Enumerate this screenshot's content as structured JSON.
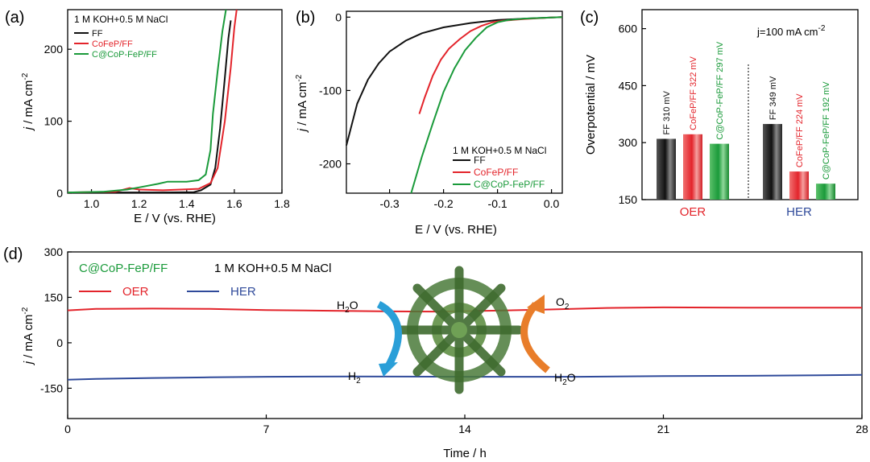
{
  "colors": {
    "black": "#111111",
    "red": "#e3242b",
    "green": "#1a9a3a",
    "blue": "#2f4a9a",
    "orange": "#e87d2a",
    "cyan": "#2a9fd8",
    "olive": "#4a7a3a"
  },
  "chart_data": [
    {
      "id": "a",
      "panel_label": "(a)",
      "type": "line",
      "annotation": "1 M KOH+0.5 M NaCl",
      "xlabel": "E / V (vs. RHE)",
      "ylabel": "j / mA cm-2",
      "xlim": [
        0.9,
        1.8
      ],
      "ylim": [
        0,
        255
      ],
      "xticks": [
        1.0,
        1.2,
        1.4,
        1.6,
        1.8
      ],
      "xtick_labels": [
        "1.0",
        "1.2",
        "1.4",
        "1.6",
        "1.8"
      ],
      "yticks": [
        0,
        100,
        200
      ],
      "ytick_labels": [
        "0",
        "100",
        "200"
      ],
      "legend_position": "top-left",
      "series": [
        {
          "name": "FF",
          "color": "#111111",
          "points": [
            [
              0.9,
              1
            ],
            [
              1.1,
              1
            ],
            [
              1.3,
              1
            ],
            [
              1.43,
              1.5
            ],
            [
              1.46,
              4
            ],
            [
              1.5,
              12
            ],
            [
              1.52,
              35
            ],
            [
              1.54,
              90
            ],
            [
              1.56,
              160
            ],
            [
              1.575,
              215
            ],
            [
              1.585,
              240
            ]
          ]
        },
        {
          "name": "CoFeP/FF",
          "color": "#e3242b",
          "points": [
            [
              0.9,
              1
            ],
            [
              1.1,
              2
            ],
            [
              1.16,
              7
            ],
            [
              1.2,
              5
            ],
            [
              1.3,
              4
            ],
            [
              1.45,
              6
            ],
            [
              1.5,
              14
            ],
            [
              1.53,
              35
            ],
            [
              1.56,
              100
            ],
            [
              1.585,
              175
            ],
            [
              1.6,
              230
            ],
            [
              1.61,
              255
            ]
          ]
        },
        {
          "name": "C@CoP-FeP/FF",
          "color": "#1a9a3a",
          "points": [
            [
              0.9,
              1
            ],
            [
              1.05,
              2
            ],
            [
              1.15,
              5
            ],
            [
              1.2,
              8
            ],
            [
              1.28,
              13
            ],
            [
              1.32,
              16
            ],
            [
              1.4,
              16
            ],
            [
              1.45,
              18
            ],
            [
              1.48,
              26
            ],
            [
              1.5,
              60
            ],
            [
              1.51,
              110
            ],
            [
              1.53,
              170
            ],
            [
              1.55,
              225
            ],
            [
              1.565,
              255
            ]
          ]
        }
      ]
    },
    {
      "id": "b",
      "panel_label": "(b)",
      "type": "line",
      "annotation": "1 M KOH+0.5 M NaCl",
      "xlabel": "E / V (vs. RHE)",
      "ylabel": "j / mA cm-2",
      "xlim": [
        -0.38,
        0.02
      ],
      "ylim": [
        -240,
        8
      ],
      "xticks": [
        -0.3,
        -0.2,
        -0.1,
        0.0
      ],
      "xtick_labels": [
        "-0.3",
        "-0.2",
        "-0.1",
        "0.0"
      ],
      "yticks": [
        -200,
        -100,
        0
      ],
      "ytick_labels": [
        "-200",
        "-100",
        "0"
      ],
      "legend_position": "bottom-right",
      "series": [
        {
          "name": "FF",
          "color": "#111111",
          "points": [
            [
              -0.38,
              -175
            ],
            [
              -0.36,
              -118
            ],
            [
              -0.34,
              -85
            ],
            [
              -0.32,
              -63
            ],
            [
              -0.3,
              -47
            ],
            [
              -0.27,
              -32
            ],
            [
              -0.24,
              -22
            ],
            [
              -0.2,
              -14
            ],
            [
              -0.15,
              -8
            ],
            [
              -0.1,
              -4
            ],
            [
              -0.05,
              -2
            ],
            [
              0.0,
              -0.5
            ],
            [
              0.02,
              0
            ]
          ]
        },
        {
          "name": "CoFeP/FF",
          "color": "#e3242b",
          "points": [
            [
              -0.245,
              -132
            ],
            [
              -0.235,
              -110
            ],
            [
              -0.22,
              -80
            ],
            [
              -0.205,
              -58
            ],
            [
              -0.19,
              -43
            ],
            [
              -0.17,
              -30
            ],
            [
              -0.15,
              -19
            ],
            [
              -0.13,
              -12
            ],
            [
              -0.11,
              -7
            ],
            [
              -0.09,
              -5
            ],
            [
              -0.05,
              -2.5
            ],
            [
              0.0,
              -0.5
            ],
            [
              0.02,
              0
            ]
          ]
        },
        {
          "name": "C@CoP-FeP/FF",
          "color": "#1a9a3a",
          "points": [
            [
              -0.26,
              -240
            ],
            [
              -0.24,
              -190
            ],
            [
              -0.22,
              -145
            ],
            [
              -0.2,
              -102
            ],
            [
              -0.18,
              -70
            ],
            [
              -0.16,
              -45
            ],
            [
              -0.14,
              -28
            ],
            [
              -0.12,
              -14
            ],
            [
              -0.1,
              -7
            ],
            [
              -0.08,
              -4
            ],
            [
              -0.05,
              -2
            ],
            [
              0.0,
              -0.5
            ],
            [
              0.02,
              0
            ]
          ]
        }
      ]
    },
    {
      "id": "c",
      "panel_label": "(c)",
      "type": "bar",
      "annotation": "j=100 mA cm-2",
      "ylabel": "Overpotential / mV",
      "ylim": [
        150,
        650
      ],
      "yticks": [
        150,
        300,
        450,
        600
      ],
      "ytick_labels": [
        "150",
        "300",
        "450",
        "600"
      ],
      "groups": [
        {
          "label": "OER",
          "color": "#e3242b",
          "bars": [
            {
              "name": "FF",
              "value": 310,
              "value_label": "310 mV",
              "color": "#111111"
            },
            {
              "name": "CoFeP/FF",
              "value": 322,
              "value_label": "322 mV",
              "color": "#e3242b"
            },
            {
              "name": "C@CoP-FeP/FF",
              "value": 297,
              "value_label": "297 mV",
              "color": "#1a9a3a"
            }
          ]
        },
        {
          "label": "HER",
          "color": "#2f4a9a",
          "bars": [
            {
              "name": "FF",
              "value": 349,
              "value_label": "349 mV",
              "color": "#111111"
            },
            {
              "name": "CoFeP/FF",
              "value": 224,
              "value_label": "224 mV",
              "color": "#e3242b"
            },
            {
              "name": "C@CoP-FeP/FF",
              "value": 192,
              "value_label": "192 mV",
              "color": "#1a9a3a"
            }
          ]
        }
      ]
    },
    {
      "id": "d",
      "panel_label": "(d)",
      "type": "line",
      "title": "C@CoP-FeP/FF",
      "annotation": "1 M KOH+0.5 M NaCl",
      "xlabel": "Time / h",
      "ylabel": "j / mA cm-2",
      "xlim": [
        0,
        28
      ],
      "ylim": [
        -250,
        300
      ],
      "xticks": [
        0,
        7,
        14,
        21,
        28
      ],
      "xtick_labels": [
        "0",
        "7",
        "14",
        "21",
        "28"
      ],
      "yticks": [
        -150,
        0,
        150,
        300
      ],
      "ytick_labels": [
        "-150",
        "0",
        "150",
        "300"
      ],
      "legend_position": "top-left",
      "series": [
        {
          "name": "OER",
          "color": "#e3242b",
          "points": [
            [
              0,
              107
            ],
            [
              1,
              112
            ],
            [
              3,
              113
            ],
            [
              5,
              112
            ],
            [
              7,
              108
            ],
            [
              9,
              106
            ],
            [
              11,
              104
            ],
            [
              13,
              103
            ],
            [
              15,
              106
            ],
            [
              17,
              110
            ],
            [
              19,
              115
            ],
            [
              21,
              117
            ],
            [
              24,
              116
            ],
            [
              28,
              116
            ]
          ]
        },
        {
          "name": "HER",
          "color": "#2f4a9a",
          "points": [
            [
              0,
              -122
            ],
            [
              1,
              -119
            ],
            [
              3,
              -116
            ],
            [
              5,
              -114
            ],
            [
              7,
              -112
            ],
            [
              10,
              -111
            ],
            [
              14,
              -112
            ],
            [
              18,
              -112
            ],
            [
              21,
              -110
            ],
            [
              24,
              -109
            ],
            [
              28,
              -106
            ]
          ]
        }
      ],
      "schematic_labels": {
        "left_in": "H2O",
        "left_out": "H2",
        "right_in": "H2O",
        "right_out": "O2"
      }
    }
  ]
}
